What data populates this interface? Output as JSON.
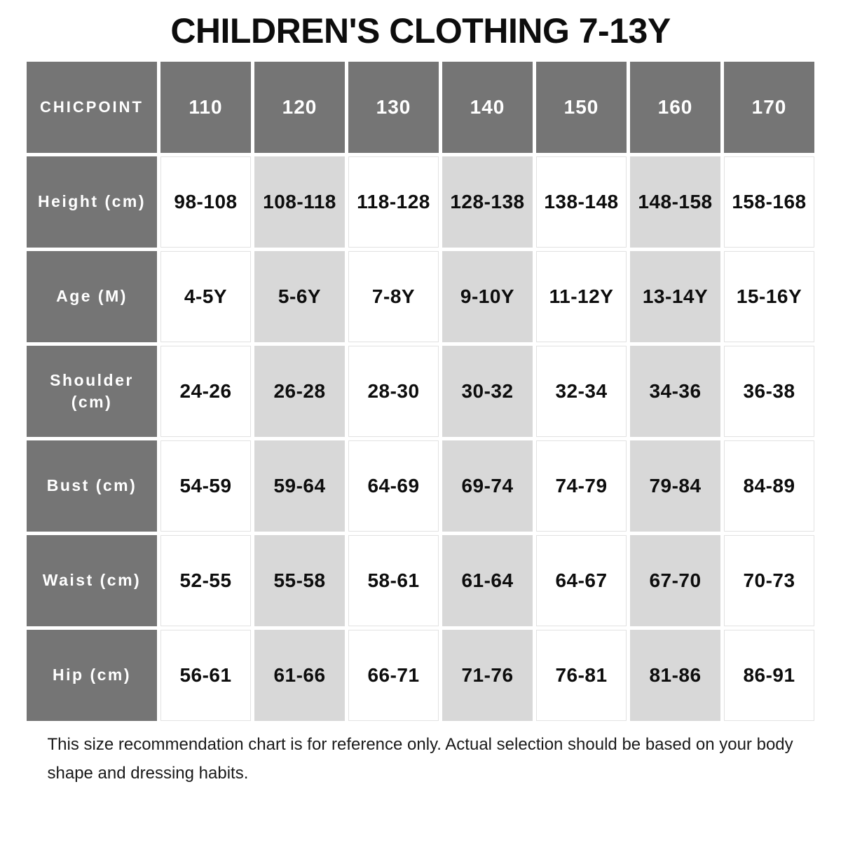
{
  "title": "CHILDREN'S CLOTHING 7-13Y",
  "footer": "This size recommendation chart is for reference only. Actual selection should be based on your body shape and dressing habits.",
  "colors": {
    "header_bg": "#757575",
    "alt_column_bg": "#d8d8d8",
    "cell_border": "#e2e2e2",
    "header_text": "#ffffff",
    "body_text": "#0d0d0d"
  },
  "chart_data": {
    "type": "table",
    "title": "CHILDREN'S CLOTHING 7-13Y",
    "columns": [
      "CHICPOINT",
      "110",
      "120",
      "130",
      "140",
      "150",
      "160",
      "170"
    ],
    "highlighted_columns": [
      "120",
      "140",
      "160"
    ],
    "rows": [
      {
        "label": "Height (cm)",
        "values": [
          "98-108",
          "108-118",
          "118-128",
          "128-138",
          "138-148",
          "148-158",
          "158-168"
        ]
      },
      {
        "label": "Age (M)",
        "values": [
          "4-5Y",
          "5-6Y",
          "7-8Y",
          "9-10Y",
          "11-12Y",
          "13-14Y",
          "15-16Y"
        ]
      },
      {
        "label": "Shoulder (cm)",
        "values": [
          "24-26",
          "26-28",
          "28-30",
          "30-32",
          "32-34",
          "34-36",
          "36-38"
        ]
      },
      {
        "label": "Bust (cm)",
        "values": [
          "54-59",
          "59-64",
          "64-69",
          "69-74",
          "74-79",
          "79-84",
          "84-89"
        ]
      },
      {
        "label": "Waist (cm)",
        "values": [
          "52-55",
          "55-58",
          "58-61",
          "61-64",
          "64-67",
          "67-70",
          "70-73"
        ]
      },
      {
        "label": "Hip (cm)",
        "values": [
          "56-61",
          "61-66",
          "66-71",
          "71-76",
          "76-81",
          "81-86",
          "86-91"
        ]
      }
    ]
  }
}
